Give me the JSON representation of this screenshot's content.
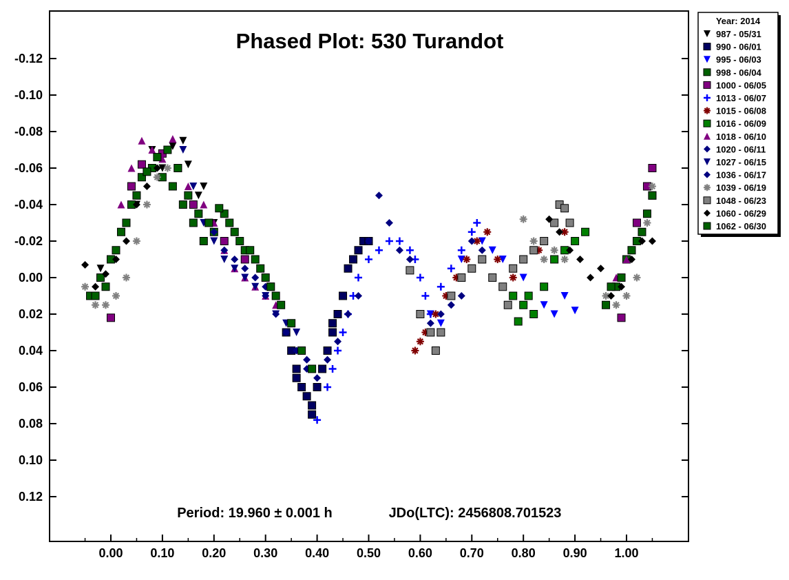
{
  "chart_data": {
    "type": "scatter",
    "title": "Phased Plot: 530 Turandot",
    "annotations": {
      "period": "Period: 19.960 ± 0.001 h",
      "epoch": "JDo(LTC): 2456808.701523"
    },
    "xlabel": "",
    "ylabel": "",
    "xlim": [
      -0.12,
      1.12
    ],
    "ylim": [
      -0.145,
      0.145
    ],
    "y_inverted": true,
    "grid": false,
    "legend_position": "outside-top-right",
    "legend_title": "Year: 2014",
    "x_ticks": [
      "0.00",
      "0.10",
      "0.20",
      "0.30",
      "0.40",
      "0.50",
      "0.60",
      "0.70",
      "0.80",
      "0.90",
      "1.00"
    ],
    "y_ticks": [
      "-0.12",
      "-0.10",
      "-0.08",
      "-0.06",
      "-0.04",
      "-0.02",
      "0.00",
      "0.02",
      "0.04",
      "0.06",
      "0.08",
      "0.10",
      "0.12"
    ],
    "y_tick_values": [
      -0.12,
      -0.1,
      -0.08,
      -0.06,
      -0.04,
      -0.02,
      0.0,
      0.02,
      0.04,
      0.06,
      0.08,
      0.1,
      0.12
    ],
    "x_tick_values": [
      0,
      0.1,
      0.2,
      0.3,
      0.4,
      0.5,
      0.6,
      0.7,
      0.8,
      0.9,
      1.0
    ],
    "series": [
      {
        "name": "987 - 05/31",
        "marker": "triangle-down",
        "color": "#000000",
        "points": [
          [
            0.08,
            -0.07
          ],
          [
            0.1,
            -0.06
          ],
          [
            0.12,
            -0.072
          ],
          [
            0.14,
            -0.075
          ],
          [
            0.15,
            -0.062
          ],
          [
            0.17,
            -0.045
          ],
          [
            0.05,
            -0.04
          ],
          [
            -0.02,
            -0.005
          ],
          [
            0.2,
            -0.03
          ],
          [
            0.18,
            -0.05
          ]
        ]
      },
      {
        "name": "990 - 06/01",
        "marker": "square",
        "color": "#000060",
        "points": [
          [
            0.34,
            0.03
          ],
          [
            0.35,
            0.04
          ],
          [
            0.36,
            0.05
          ],
          [
            0.37,
            0.06
          ],
          [
            0.38,
            0.065
          ],
          [
            0.39,
            0.07
          ],
          [
            0.4,
            0.06
          ],
          [
            0.41,
            0.05
          ],
          [
            0.42,
            0.04
          ],
          [
            0.43,
            0.03
          ],
          [
            0.44,
            0.02
          ],
          [
            0.45,
            0.01
          ],
          [
            0.46,
            -0.005
          ],
          [
            0.47,
            -0.01
          ],
          [
            0.48,
            -0.015
          ],
          [
            0.49,
            -0.02
          ],
          [
            0.5,
            -0.02
          ],
          [
            0.39,
            0.075
          ],
          [
            0.36,
            0.055
          ],
          [
            0.43,
            0.025
          ]
        ]
      },
      {
        "name": "995 - 06/03",
        "marker": "triangle-down",
        "color": "#0000ff",
        "points": [
          [
            0.62,
            0.02
          ],
          [
            0.64,
            0.025
          ],
          [
            0.66,
            0.01
          ],
          [
            0.68,
            -0.01
          ],
          [
            0.72,
            -0.02
          ],
          [
            0.76,
            -0.01
          ],
          [
            0.8,
            0.0
          ],
          [
            0.82,
            0.02
          ],
          [
            0.84,
            0.015
          ],
          [
            0.86,
            0.02
          ],
          [
            0.88,
            0.01
          ],
          [
            0.9,
            0.018
          ],
          [
            0.78,
            0.01
          ],
          [
            0.74,
            -0.015
          ]
        ]
      },
      {
        "name": "998 - 06/04",
        "marker": "square",
        "color": "#006000",
        "points": [
          [
            -0.04,
            0.01
          ],
          [
            -0.02,
            0.0
          ],
          [
            0.0,
            -0.01
          ],
          [
            0.02,
            -0.025
          ],
          [
            0.04,
            -0.04
          ],
          [
            0.06,
            -0.055
          ],
          [
            0.08,
            -0.06
          ],
          [
            0.1,
            -0.055
          ],
          [
            0.12,
            -0.05
          ],
          [
            0.14,
            -0.04
          ],
          [
            0.16,
            -0.03
          ],
          [
            0.18,
            -0.02
          ],
          [
            0.2,
            -0.025
          ],
          [
            0.22,
            -0.035
          ],
          [
            0.24,
            -0.025
          ],
          [
            0.26,
            -0.015
          ],
          [
            0.28,
            -0.01
          ],
          [
            0.3,
            0.0
          ],
          [
            0.32,
            0.01
          ],
          [
            0.96,
            0.015
          ],
          [
            0.98,
            0.005
          ],
          [
            1.0,
            -0.01
          ],
          [
            1.02,
            -0.02
          ],
          [
            1.04,
            -0.035
          ],
          [
            1.05,
            -0.045
          ]
        ]
      },
      {
        "name": "1000 - 06/05",
        "marker": "square",
        "color": "#800080",
        "points": [
          [
            0.0,
            0.022
          ],
          [
            0.04,
            -0.05
          ],
          [
            0.06,
            -0.062
          ],
          [
            0.1,
            -0.068
          ],
          [
            0.13,
            -0.06
          ],
          [
            0.16,
            -0.04
          ],
          [
            0.19,
            -0.03
          ],
          [
            0.22,
            -0.02
          ],
          [
            0.26,
            -0.01
          ],
          [
            0.31,
            0.005
          ],
          [
            0.99,
            0.022
          ],
          [
            1.02,
            -0.03
          ],
          [
            1.04,
            -0.05
          ],
          [
            1.05,
            -0.06
          ]
        ]
      },
      {
        "name": "1013 - 06/07",
        "marker": "plus",
        "color": "#0000ff",
        "points": [
          [
            0.4,
            0.078
          ],
          [
            0.42,
            0.06
          ],
          [
            0.43,
            0.05
          ],
          [
            0.44,
            0.04
          ],
          [
            0.45,
            0.03
          ],
          [
            0.46,
            0.02
          ],
          [
            0.47,
            0.01
          ],
          [
            0.48,
            0.0
          ],
          [
            0.5,
            -0.01
          ],
          [
            0.52,
            -0.015
          ],
          [
            0.54,
            -0.02
          ],
          [
            0.56,
            -0.02
          ],
          [
            0.58,
            -0.015
          ],
          [
            0.59,
            -0.01
          ],
          [
            0.6,
            0.0
          ],
          [
            0.61,
            0.01
          ],
          [
            0.62,
            0.02
          ],
          [
            0.64,
            0.005
          ],
          [
            0.66,
            -0.005
          ],
          [
            0.68,
            -0.015
          ],
          [
            0.7,
            -0.025
          ],
          [
            0.71,
            -0.03
          ]
        ]
      },
      {
        "name": "1015 - 06/08",
        "marker": "asterisk",
        "color": "#800000",
        "points": [
          [
            0.59,
            0.04
          ],
          [
            0.6,
            0.035
          ],
          [
            0.61,
            0.03
          ],
          [
            0.63,
            0.02
          ],
          [
            0.65,
            0.01
          ],
          [
            0.67,
            0.0
          ],
          [
            0.69,
            -0.01
          ],
          [
            0.71,
            -0.02
          ],
          [
            0.73,
            -0.025
          ],
          [
            0.75,
            -0.01
          ],
          [
            0.78,
            0.0
          ],
          [
            0.8,
            -0.01
          ],
          [
            0.83,
            -0.015
          ],
          [
            0.88,
            -0.025
          ],
          [
            0.9,
            -0.02
          ]
        ]
      },
      {
        "name": "1016 - 06/09",
        "marker": "square",
        "color": "#008000",
        "points": [
          [
            0.78,
            0.01
          ],
          [
            0.8,
            0.015
          ],
          [
            0.82,
            0.02
          ],
          [
            0.84,
            0.005
          ],
          [
            0.86,
            -0.01
          ],
          [
            0.88,
            -0.015
          ],
          [
            0.9,
            -0.02
          ],
          [
            0.92,
            -0.025
          ],
          [
            0.79,
            0.024
          ],
          [
            0.81,
            0.01
          ]
        ]
      },
      {
        "name": "1018 - 06/10",
        "marker": "triangle-up",
        "color": "#800080",
        "points": [
          [
            0.02,
            -0.04
          ],
          [
            0.04,
            -0.06
          ],
          [
            0.06,
            -0.075
          ],
          [
            0.08,
            -0.07
          ],
          [
            0.1,
            -0.065
          ],
          [
            0.12,
            -0.076
          ],
          [
            0.15,
            -0.05
          ],
          [
            0.18,
            -0.04
          ],
          [
            0.2,
            -0.03
          ],
          [
            0.22,
            -0.015
          ],
          [
            0.24,
            -0.005
          ],
          [
            0.26,
            0.0
          ],
          [
            0.28,
            0.005
          ],
          [
            0.3,
            0.01
          ],
          [
            0.32,
            0.015
          ],
          [
            0.98,
            0.0
          ],
          [
            1.0,
            -0.01
          ]
        ]
      },
      {
        "name": "1020 - 06/11",
        "marker": "diamond",
        "color": "#000080",
        "points": [
          [
            0.52,
            -0.045
          ],
          [
            0.54,
            -0.03
          ],
          [
            0.5,
            -0.02
          ],
          [
            0.3,
            0.01
          ],
          [
            0.32,
            0.02
          ],
          [
            0.34,
            0.03
          ],
          [
            0.36,
            0.04
          ],
          [
            0.38,
            0.05
          ],
          [
            0.62,
            0.025
          ],
          [
            0.64,
            0.02
          ],
          [
            0.66,
            0.015
          ],
          [
            0.68,
            0.01
          ],
          [
            0.7,
            -0.02
          ],
          [
            0.72,
            -0.015
          ]
        ]
      },
      {
        "name": "1027 - 06/15",
        "marker": "triangle-down",
        "color": "#000080",
        "points": [
          [
            0.2,
            -0.02
          ],
          [
            0.22,
            -0.01
          ],
          [
            0.24,
            -0.005
          ],
          [
            0.26,
            0.0
          ],
          [
            0.28,
            0.005
          ],
          [
            0.3,
            0.01
          ],
          [
            0.32,
            0.02
          ],
          [
            0.34,
            0.025
          ],
          [
            0.36,
            0.03
          ],
          [
            0.14,
            -0.07
          ],
          [
            0.16,
            -0.05
          ],
          [
            0.18,
            -0.03
          ]
        ]
      },
      {
        "name": "1036 - 06/17",
        "marker": "diamond",
        "color": "#000080",
        "points": [
          [
            0.2,
            -0.025
          ],
          [
            0.22,
            -0.015
          ],
          [
            0.24,
            -0.01
          ],
          [
            0.26,
            -0.005
          ],
          [
            0.28,
            0.0
          ],
          [
            0.3,
            0.005
          ],
          [
            0.38,
            0.045
          ],
          [
            0.4,
            0.055
          ],
          [
            0.42,
            0.045
          ],
          [
            0.44,
            0.035
          ],
          [
            0.46,
            0.02
          ],
          [
            0.48,
            0.01
          ],
          [
            0.56,
            -0.015
          ],
          [
            0.58,
            -0.01
          ]
        ]
      },
      {
        "name": "1039 - 06/19",
        "marker": "asterisk",
        "color": "#808080",
        "points": [
          [
            -0.05,
            0.005
          ],
          [
            -0.03,
            0.015
          ],
          [
            -0.01,
            0.015
          ],
          [
            0.01,
            0.01
          ],
          [
            0.03,
            0.0
          ],
          [
            0.05,
            -0.02
          ],
          [
            0.07,
            -0.04
          ],
          [
            0.09,
            -0.055
          ],
          [
            0.11,
            -0.06
          ],
          [
            0.8,
            -0.032
          ],
          [
            0.82,
            -0.02
          ],
          [
            0.84,
            -0.01
          ],
          [
            0.86,
            -0.015
          ],
          [
            0.88,
            -0.01
          ],
          [
            0.96,
            0.01
          ],
          [
            0.98,
            0.015
          ],
          [
            1.0,
            0.01
          ],
          [
            1.02,
            0.0
          ],
          [
            1.04,
            -0.03
          ],
          [
            1.05,
            -0.05
          ]
        ]
      },
      {
        "name": "1048 - 06/23",
        "marker": "square",
        "color": "#808080",
        "points": [
          [
            0.58,
            -0.004
          ],
          [
            0.6,
            0.02
          ],
          [
            0.62,
            0.03
          ],
          [
            0.63,
            0.04
          ],
          [
            0.64,
            0.03
          ],
          [
            0.66,
            0.01
          ],
          [
            0.68,
            0.0
          ],
          [
            0.7,
            -0.005
          ],
          [
            0.72,
            -0.01
          ],
          [
            0.74,
            0.0
          ],
          [
            0.76,
            0.005
          ],
          [
            0.78,
            -0.005
          ],
          [
            0.8,
            -0.01
          ],
          [
            0.82,
            -0.015
          ],
          [
            0.84,
            -0.02
          ],
          [
            0.86,
            -0.03
          ],
          [
            0.87,
            -0.04
          ],
          [
            0.88,
            -0.038
          ],
          [
            0.89,
            -0.03
          ],
          [
            0.77,
            0.015
          ]
        ]
      },
      {
        "name": "1060 - 06/29",
        "marker": "diamond",
        "color": "#000000",
        "points": [
          [
            -0.05,
            -0.007
          ],
          [
            -0.03,
            0.005
          ],
          [
            -0.01,
            -0.002
          ],
          [
            0.01,
            -0.01
          ],
          [
            0.03,
            -0.02
          ],
          [
            0.05,
            -0.04
          ],
          [
            0.07,
            -0.05
          ],
          [
            0.09,
            -0.06
          ],
          [
            0.85,
            -0.032
          ],
          [
            0.87,
            -0.025
          ],
          [
            0.89,
            -0.015
          ],
          [
            0.91,
            -0.01
          ],
          [
            0.93,
            0.0
          ],
          [
            0.95,
            -0.005
          ],
          [
            0.97,
            0.01
          ],
          [
            0.99,
            0.005
          ],
          [
            1.01,
            -0.01
          ],
          [
            1.03,
            -0.02
          ],
          [
            1.05,
            -0.02
          ]
        ]
      },
      {
        "name": "1062 - 06/30",
        "marker": "square",
        "color": "#006000",
        "points": [
          [
            -0.03,
            0.01
          ],
          [
            -0.01,
            0.005
          ],
          [
            0.01,
            -0.015
          ],
          [
            0.03,
            -0.03
          ],
          [
            0.05,
            -0.045
          ],
          [
            0.07,
            -0.058
          ],
          [
            0.09,
            -0.066
          ],
          [
            0.11,
            -0.07
          ],
          [
            0.13,
            -0.06
          ],
          [
            0.15,
            -0.045
          ],
          [
            0.17,
            -0.035
          ],
          [
            0.19,
            -0.03
          ],
          [
            0.21,
            -0.038
          ],
          [
            0.23,
            -0.03
          ],
          [
            0.25,
            -0.02
          ],
          [
            0.27,
            -0.015
          ],
          [
            0.29,
            -0.005
          ],
          [
            0.31,
            0.005
          ],
          [
            0.33,
            0.015
          ],
          [
            0.35,
            0.025
          ],
          [
            0.37,
            0.04
          ],
          [
            0.39,
            0.05
          ],
          [
            0.97,
            0.005
          ],
          [
            0.99,
            0.0
          ],
          [
            1.01,
            -0.015
          ],
          [
            1.03,
            -0.025
          ],
          [
            1.05,
            -0.045
          ]
        ]
      }
    ]
  }
}
